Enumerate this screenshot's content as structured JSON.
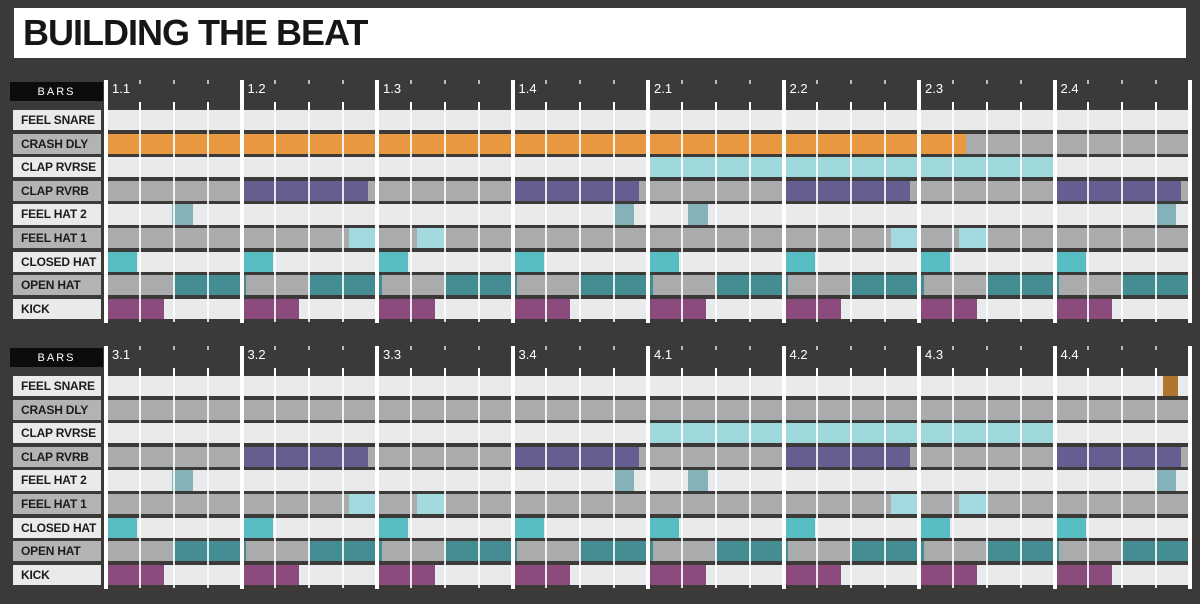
{
  "title": "BUILDING THE BEAT",
  "bars_label": "BARS",
  "colors": {
    "background": "#3b3a39",
    "orange": "#e8993f",
    "cyan": "#9fd8db",
    "purple": "#645f90",
    "teal_muted": "#84b2b8",
    "cyan_pale": "#a3dae0",
    "teal_bright": "#58bdc2",
    "teal_dark": "#448d93",
    "magenta": "#8b4b7d",
    "brown": "#b0752f",
    "track_light": "#e8eaeb",
    "track_gray": "#a9abad"
  },
  "rows": [
    {
      "label": "FEEL SNARE",
      "shade": "light"
    },
    {
      "label": "CRASH DLY",
      "shade": "gray"
    },
    {
      "label": "CLAP RVRSE",
      "shade": "light"
    },
    {
      "label": "CLAP RVRB",
      "shade": "gray"
    },
    {
      "label": "FEEL HAT 2",
      "shade": "light"
    },
    {
      "label": "FEEL HAT 1",
      "shade": "gray"
    },
    {
      "label": "CLOSED HAT",
      "shade": "light"
    },
    {
      "label": "OPEN HAT",
      "shade": "gray"
    },
    {
      "label": "KICK",
      "shade": "light"
    }
  ],
  "grids": [
    {
      "bars": [
        "1.1",
        "1.2",
        "1.3",
        "1.4",
        "2.1",
        "2.2",
        "2.3",
        "2.4"
      ],
      "segments": {
        "CRASH DLY": {
          "color": "orange",
          "blocks": [
            [
              0,
              0,
              1
            ],
            [
              1,
              0,
              1
            ],
            [
              2,
              0,
              1
            ],
            [
              3,
              0,
              1
            ],
            [
              4,
              0,
              1
            ],
            [
              5,
              0,
              1
            ],
            [
              6,
              0,
              0.35
            ]
          ]
        },
        "CLAP RVRSE": {
          "color": "cyan",
          "blocks": [
            [
              4,
              0,
              1
            ],
            [
              5,
              0,
              1
            ],
            [
              6,
              0,
              1
            ]
          ]
        },
        "CLAP RVRB": {
          "color": "purple",
          "blocks": [
            [
              1,
              0,
              0.93
            ],
            [
              3,
              0,
              0.93
            ],
            [
              5,
              0,
              0.93
            ],
            [
              7,
              0,
              0.93
            ]
          ]
        },
        "FEEL HAT 2": {
          "color": "teal_muted",
          "blocks": [
            [
              0,
              0.49,
              0.64
            ],
            [
              3,
              0.755,
              0.9
            ],
            [
              4,
              0.295,
              0.44
            ],
            [
              7,
              0.755,
              0.9
            ]
          ]
        },
        "FEEL HAT 1": {
          "color": "cyan_pale",
          "blocks": [
            [
              1,
              0.79,
              1
            ],
            [
              2,
              0.295,
              0.5
            ],
            [
              5,
              0.79,
              1
            ],
            [
              6,
              0.295,
              0.5
            ]
          ]
        },
        "CLOSED HAT": {
          "color": "teal_bright",
          "blocks": [
            [
              0,
              0,
              0.23
            ],
            [
              1,
              0,
              0.23
            ],
            [
              2,
              0,
              0.23
            ],
            [
              3,
              0,
              0.23
            ],
            [
              4,
              0,
              0.23
            ],
            [
              5,
              0,
              0.23
            ],
            [
              6,
              0,
              0.23
            ],
            [
              7,
              0,
              0.23
            ]
          ]
        },
        "OPEN HAT": {
          "color": "teal_dark",
          "blocks": [
            [
              0,
              0.5,
              1
            ],
            [
              1,
              0,
              0.035
            ],
            [
              1,
              0.5,
              1
            ],
            [
              2,
              0,
              0.035
            ],
            [
              2,
              0.5,
              1
            ],
            [
              3,
              0,
              0.035
            ],
            [
              3,
              0.5,
              1
            ],
            [
              4,
              0,
              0.035
            ],
            [
              4,
              0.5,
              1
            ],
            [
              5,
              0,
              0.035
            ],
            [
              5,
              0.5,
              1
            ],
            [
              6,
              0,
              0.035
            ],
            [
              6,
              0.5,
              1
            ],
            [
              7,
              0,
              0.035
            ],
            [
              7,
              0.5,
              1
            ]
          ]
        },
        "KICK": {
          "color": "magenta",
          "blocks": [
            [
              0,
              0,
              0.425
            ],
            [
              1,
              0,
              0.425
            ],
            [
              2,
              0,
              0.425
            ],
            [
              3,
              0,
              0.425
            ],
            [
              4,
              0,
              0.425
            ],
            [
              5,
              0,
              0.425
            ],
            [
              6,
              0,
              0.425
            ],
            [
              7,
              0,
              0.425
            ]
          ]
        }
      }
    },
    {
      "bars": [
        "3.1",
        "3.2",
        "3.3",
        "3.4",
        "4.1",
        "4.2",
        "4.3",
        "4.4"
      ],
      "segments": {
        "FEEL SNARE": {
          "color": "brown",
          "blocks": [
            [
              7,
              0.8,
              0.91
            ]
          ]
        },
        "CLAP RVRSE": {
          "color": "cyan",
          "blocks": [
            [
              4,
              0,
              1
            ],
            [
              5,
              0,
              1
            ],
            [
              6,
              0,
              1
            ]
          ]
        },
        "CLAP RVRB": {
          "color": "purple",
          "blocks": [
            [
              1,
              0,
              0.93
            ],
            [
              3,
              0,
              0.93
            ],
            [
              5,
              0,
              0.93
            ],
            [
              7,
              0,
              0.93
            ]
          ]
        },
        "FEEL HAT 2": {
          "color": "teal_muted",
          "blocks": [
            [
              0,
              0.49,
              0.64
            ],
            [
              3,
              0.755,
              0.9
            ],
            [
              4,
              0.295,
              0.44
            ],
            [
              7,
              0.755,
              0.9
            ]
          ]
        },
        "FEEL HAT 1": {
          "color": "cyan_pale",
          "blocks": [
            [
              1,
              0.79,
              1
            ],
            [
              2,
              0.295,
              0.5
            ],
            [
              5,
              0.79,
              1
            ],
            [
              6,
              0.295,
              0.5
            ]
          ]
        },
        "CLOSED HAT": {
          "color": "teal_bright",
          "blocks": [
            [
              0,
              0,
              0.23
            ],
            [
              1,
              0,
              0.23
            ],
            [
              2,
              0,
              0.23
            ],
            [
              3,
              0,
              0.23
            ],
            [
              4,
              0,
              0.23
            ],
            [
              5,
              0,
              0.23
            ],
            [
              6,
              0,
              0.23
            ],
            [
              7,
              0,
              0.23
            ]
          ]
        },
        "OPEN HAT": {
          "color": "teal_dark",
          "blocks": [
            [
              0,
              0.5,
              1
            ],
            [
              1,
              0,
              0.035
            ],
            [
              1,
              0.5,
              1
            ],
            [
              2,
              0,
              0.035
            ],
            [
              2,
              0.5,
              1
            ],
            [
              3,
              0,
              0.035
            ],
            [
              3,
              0.5,
              1
            ],
            [
              4,
              0,
              0.035
            ],
            [
              4,
              0.5,
              1
            ],
            [
              5,
              0,
              0.035
            ],
            [
              5,
              0.5,
              1
            ],
            [
              6,
              0,
              0.035
            ],
            [
              6,
              0.5,
              1
            ],
            [
              7,
              0,
              0.035
            ],
            [
              7,
              0.5,
              1
            ]
          ]
        },
        "KICK": {
          "color": "magenta",
          "blocks": [
            [
              0,
              0,
              0.425
            ],
            [
              1,
              0,
              0.425
            ],
            [
              2,
              0,
              0.425
            ],
            [
              3,
              0,
              0.425
            ],
            [
              4,
              0,
              0.425
            ],
            [
              5,
              0,
              0.425
            ],
            [
              6,
              0,
              0.425
            ],
            [
              7,
              0,
              0.425
            ]
          ]
        }
      }
    }
  ]
}
